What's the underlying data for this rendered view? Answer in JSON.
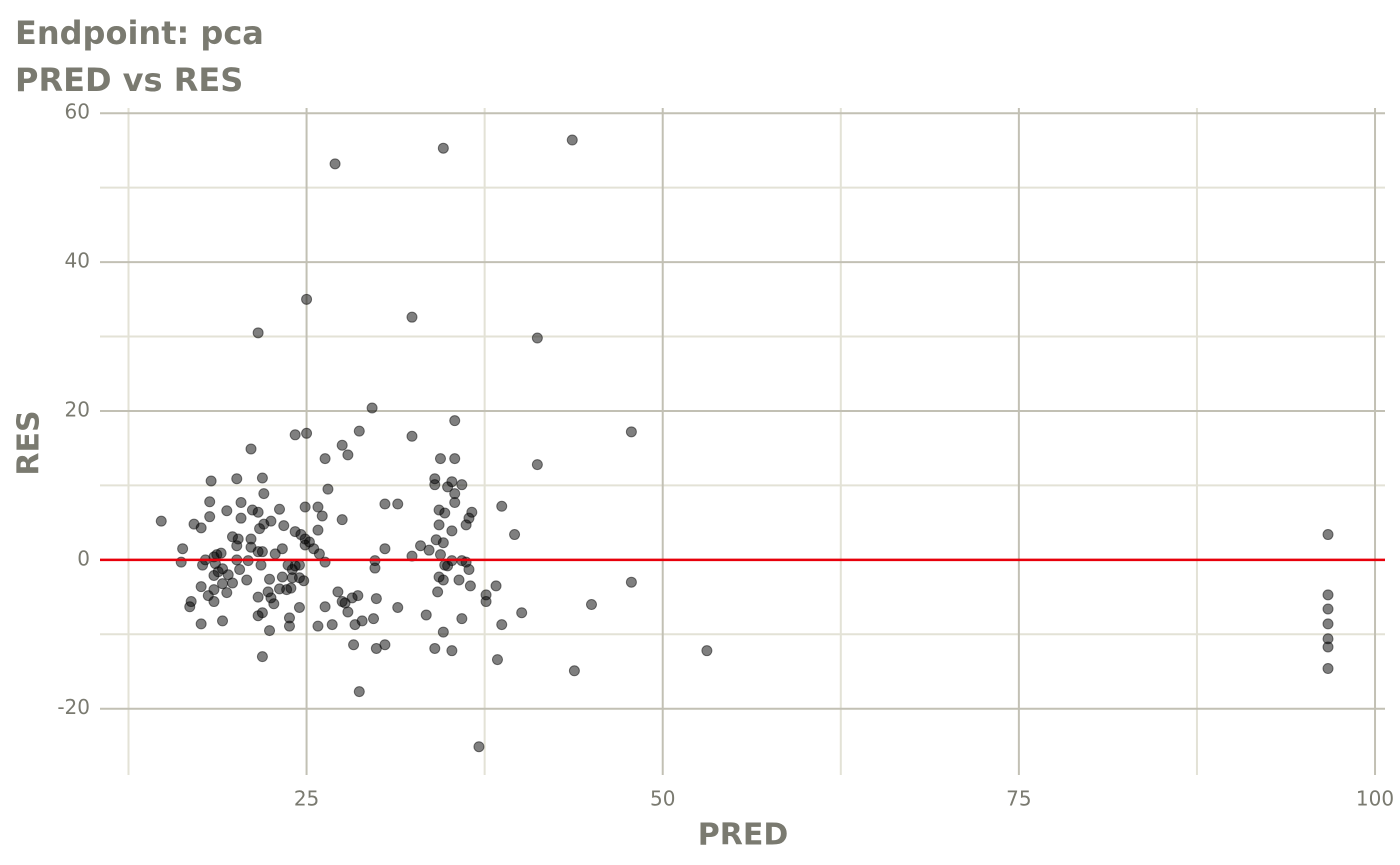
{
  "chart_data": {
    "type": "scatter",
    "title": "Endpoint:  pca",
    "subtitle": "PRED vs RES",
    "x_label": "PRED",
    "y_label": "RES",
    "xlim": [
      10.5,
      100.7
    ],
    "ylim": [
      -28.9,
      60.7
    ],
    "xticks": [
      25,
      50,
      75,
      100
    ],
    "yticks": [
      -20,
      0,
      20,
      40,
      60
    ],
    "x_minor_grid": [
      12.5,
      37.5,
      62.5,
      87.5
    ],
    "y_minor_grid": [
      -10,
      10,
      30,
      50
    ],
    "grid": true,
    "point_color": "#000000",
    "point_opacity": 0.5,
    "hline": {
      "value": 0,
      "color": "#e8000b"
    },
    "x": [
      34.6,
      43.65,
      27.0,
      25.0,
      21.6,
      32.4,
      41.2,
      29.6,
      35.4,
      47.8,
      24.2,
      25.0,
      28.7,
      32.4,
      21.1,
      27.5,
      27.9,
      26.3,
      34.4,
      35.4,
      41.2,
      21.9,
      18.3,
      20.1,
      34.0,
      35.2,
      34.0,
      35.9,
      34.9,
      26.5,
      22.0,
      35.4,
      35.4,
      18.2,
      20.4,
      30.5,
      31.4,
      38.7,
      24.9,
      25.8,
      23.1,
      19.4,
      21.2,
      21.6,
      34.3,
      34.7,
      36.6,
      18.2,
      20.4,
      26.1,
      27.5,
      36.4,
      22.5,
      14.8,
      17.1,
      22.0,
      23.4,
      34.3,
      36.2,
      17.6,
      21.7,
      25.8,
      35.2,
      24.2,
      24.6,
      39.6,
      19.8,
      20.2,
      21.1,
      24.9,
      25.2,
      34.1,
      34.6,
      24.9,
      33.0,
      16.3,
      20.1,
      21.1,
      23.3,
      25.5,
      30.5,
      33.6,
      18.7,
      18.5,
      19.0,
      21.6,
      21.9,
      22.8,
      25.9,
      32.4,
      34.4,
      16.2,
      17.9,
      20.1,
      20.9,
      29.8,
      26.3,
      35.2,
      35.9,
      36.2,
      17.7,
      18.6,
      21.8,
      23.7,
      24.2,
      24.5,
      34.7,
      29.8,
      34.9,
      19.1,
      20.3,
      18.8,
      24.0,
      36.4,
      18.5,
      19.5,
      20.8,
      22.4,
      23.3,
      24.0,
      24.5,
      24.8,
      34.3,
      34.6,
      35.7,
      47.8,
      19.8,
      19.1,
      17.6,
      18.5,
      23.1,
      23.6,
      23.9,
      36.5,
      38.3,
      22.3,
      19.4,
      27.2,
      34.2,
      37.6,
      96.7,
      18.1,
      21.6,
      22.5,
      28.2,
      28.6,
      29.9,
      16.9,
      18.5,
      22.7,
      27.5,
      27.7,
      37.6,
      45.0,
      16.8,
      24.5,
      26.3,
      31.4,
      96.7,
      27.9,
      21.9,
      40.1,
      21.6,
      33.4,
      23.8,
      35.9,
      29.7,
      19.1,
      28.9,
      28.4,
      17.6,
      23.8,
      25.8,
      26.8,
      38.7,
      96.7,
      34.6,
      22.4,
      96.7,
      28.3,
      30.5,
      29.9,
      34.0,
      35.2,
      53.1,
      96.7,
      21.9,
      38.4,
      43.8,
      96.7,
      28.7,
      37.1,
      96.7
    ],
    "values": [
      55.3,
      56.4,
      53.2,
      35.0,
      30.5,
      32.6,
      29.8,
      20.4,
      18.7,
      17.2,
      16.8,
      17.0,
      17.3,
      16.6,
      14.9,
      15.4,
      14.1,
      13.6,
      13.6,
      13.6,
      12.8,
      11.0,
      10.6,
      10.9,
      10.9,
      10.5,
      10.1,
      10.1,
      9.8,
      9.5,
      8.9,
      8.9,
      7.7,
      7.8,
      7.7,
      7.5,
      7.5,
      7.2,
      7.1,
      7.1,
      6.8,
      6.6,
      6.7,
      6.4,
      6.7,
      6.3,
      6.4,
      5.8,
      5.6,
      5.9,
      5.4,
      5.6,
      5.2,
      5.2,
      4.8,
      4.8,
      4.6,
      4.7,
      4.7,
      4.3,
      4.2,
      4.0,
      3.9,
      3.8,
      3.4,
      3.4,
      3.1,
      2.8,
      2.8,
      2.8,
      2.4,
      2.7,
      2.3,
      2.0,
      1.9,
      1.5,
      1.9,
      1.7,
      1.5,
      1.5,
      1.5,
      1.3,
      0.7,
      0.4,
      0.9,
      1.1,
      1.1,
      0.8,
      0.8,
      0.5,
      0.7,
      -0.3,
      0.0,
      0.0,
      -0.1,
      -0.1,
      -0.3,
      -0.1,
      -0.1,
      -0.3,
      -0.7,
      -0.5,
      -0.7,
      -0.7,
      -0.8,
      -0.7,
      -0.7,
      -1.1,
      -0.8,
      -1.2,
      -1.3,
      -1.6,
      -1.3,
      -1.3,
      -2.1,
      -2.0,
      -2.7,
      -2.6,
      -2.3,
      -2.4,
      -2.4,
      -2.8,
      -2.3,
      -2.7,
      -2.7,
      -3.0,
      -3.1,
      -3.2,
      -3.6,
      -4.0,
      -3.9,
      -4.0,
      -3.8,
      -3.5,
      -3.5,
      -4.3,
      -4.4,
      -4.3,
      -4.3,
      -4.7,
      -4.7,
      -4.8,
      -5.0,
      -5.1,
      -5.1,
      -4.8,
      -5.2,
      -5.6,
      -5.6,
      -5.9,
      -5.6,
      -5.8,
      -5.6,
      -6.0,
      -6.3,
      -6.4,
      -6.3,
      -6.4,
      -6.6,
      -7.0,
      -7.1,
      -7.1,
      -7.5,
      -7.4,
      -7.8,
      -7.9,
      -7.9,
      -8.2,
      -8.2,
      -8.7,
      -8.6,
      -8.9,
      -8.9,
      -8.7,
      -8.7,
      -8.6,
      -9.7,
      -9.5,
      -10.6,
      -11.4,
      -11.4,
      -11.9,
      -11.9,
      -12.2,
      -12.2,
      -11.7,
      -13.0,
      -13.4,
      -14.9,
      -14.6,
      -17.7,
      -25.1,
      3.4
    ]
  }
}
